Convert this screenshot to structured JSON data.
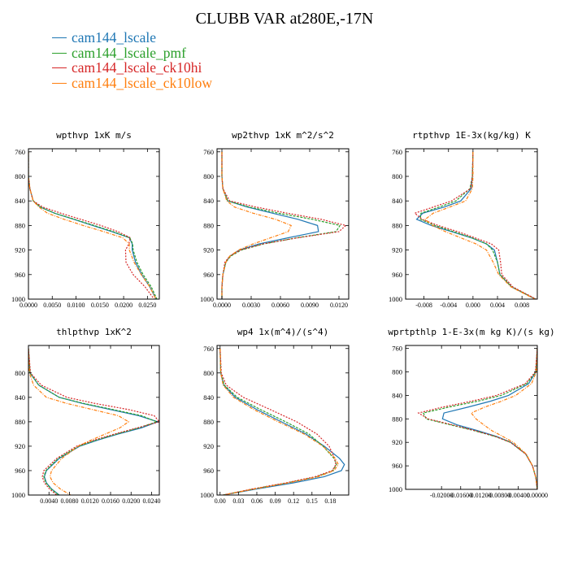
{
  "title": "CLUBB VAR at280E,-17N",
  "legend": [
    {
      "label": "cam144_lscale",
      "color": "#1f77b4"
    },
    {
      "label": "cam144_lscale_pmf",
      "color": "#2ca02c"
    },
    {
      "label": "cam144_lscale_ck10hi",
      "color": "#d62728"
    },
    {
      "label": "cam144_lscale_ck10low",
      "color": "#ff7f0e"
    }
  ],
  "chart_data": [
    {
      "type": "line",
      "title": "wpthvp   1xK m/s",
      "y": [
        760,
        800,
        820,
        840,
        850,
        860,
        870,
        880,
        890,
        900,
        910,
        920,
        940,
        960,
        980,
        1000
      ],
      "ylim": [
        1000,
        755
      ],
      "yticks": [
        760,
        800,
        840,
        880,
        920,
        960,
        1000
      ],
      "xlim": [
        0.0,
        0.0275
      ],
      "xticks": [
        0.0,
        0.005,
        0.01,
        0.015,
        0.02,
        0.025
      ],
      "xticklabels": [
        "0.0000",
        "0.0050",
        "0.0100",
        "0.0150",
        "0.0200",
        "0.0250"
      ],
      "series": [
        {
          "name": "cam144_lscale",
          "x": [
            0,
            0,
            0.0003,
            0.001,
            0.0025,
            0.0055,
            0.0095,
            0.0135,
            0.0175,
            0.0212,
            0.0218,
            0.0218,
            0.0225,
            0.0238,
            0.0255,
            0.0268
          ]
        },
        {
          "name": "cam144_lscale_pmf",
          "x": [
            0,
            0,
            0.0003,
            0.001,
            0.0025,
            0.0055,
            0.0097,
            0.0138,
            0.0178,
            0.0213,
            0.0219,
            0.022,
            0.0228,
            0.0241,
            0.0258,
            0.027
          ]
        },
        {
          "name": "cam144_lscale_ck10hi",
          "x": [
            0,
            0,
            0.0003,
            0.001,
            0.003,
            0.0068,
            0.011,
            0.0152,
            0.0188,
            0.0214,
            0.0211,
            0.0204,
            0.0205,
            0.022,
            0.0245,
            0.0264
          ]
        },
        {
          "name": "cam144_lscale_ck10low",
          "x": [
            0,
            0,
            0.0003,
            0.001,
            0.0022,
            0.004,
            0.0075,
            0.0115,
            0.0158,
            0.0198,
            0.0212,
            0.0212,
            0.0222,
            0.0237,
            0.0255,
            0.0268
          ]
        }
      ]
    },
    {
      "type": "line",
      "title": "wp2thvp   1xK m^2/s^2",
      "y": [
        760,
        800,
        820,
        840,
        850,
        860,
        870,
        880,
        890,
        900,
        910,
        920,
        930,
        940,
        960,
        980,
        1000
      ],
      "ylim": [
        1000,
        755
      ],
      "yticks": [
        760,
        800,
        840,
        880,
        920,
        960,
        1000
      ],
      "xlim": [
        -0.0005,
        0.013
      ],
      "xticks": [
        0.0,
        0.003,
        0.006,
        0.009,
        0.012
      ],
      "xticklabels": [
        "0.0000",
        "0.0030",
        "0.0060",
        "0.0090",
        "0.0120"
      ],
      "series": [
        {
          "name": "cam144_lscale",
          "x": [
            0,
            0,
            0.0001,
            0.0006,
            0.0026,
            0.0052,
            0.0078,
            0.0098,
            0.0099,
            0.0068,
            0.0038,
            0.0018,
            0.0008,
            0.0004,
            0.0001,
            0,
            0
          ]
        },
        {
          "name": "cam144_lscale_pmf",
          "x": [
            0,
            0,
            0.0001,
            0.0006,
            0.0028,
            0.0058,
            0.0093,
            0.0121,
            0.0117,
            0.0077,
            0.0043,
            0.002,
            0.0009,
            0.0004,
            0.0001,
            0,
            0
          ]
        },
        {
          "name": "cam144_lscale_ck10hi",
          "x": [
            0,
            0,
            0.0001,
            0.0008,
            0.0035,
            0.0067,
            0.0102,
            0.0127,
            0.012,
            0.0078,
            0.0042,
            0.0019,
            0.0008,
            0.0003,
            0.0001,
            0,
            0
          ]
        },
        {
          "name": "cam144_lscale_ck10low",
          "x": [
            0,
            0,
            0.0001,
            0.0005,
            0.0013,
            0.0032,
            0.0055,
            0.0071,
            0.0068,
            0.005,
            0.0032,
            0.0017,
            0.0008,
            0.0004,
            0.0001,
            0,
            0
          ]
        }
      ]
    },
    {
      "type": "line",
      "title": "rtpthvp   1E-3x(kg/kg) K",
      "y": [
        760,
        800,
        820,
        840,
        850,
        860,
        870,
        880,
        890,
        900,
        910,
        920,
        940,
        960,
        980,
        1000
      ],
      "ylim": [
        1000,
        755
      ],
      "yticks": [
        760,
        800,
        840,
        880,
        920,
        960,
        1000
      ],
      "xlim": [
        -0.011,
        0.0105
      ],
      "xticks": [
        -0.008,
        -0.004,
        0.0,
        0.004,
        0.008
      ],
      "xticklabels": [
        "-0.008",
        "-0.004",
        "0.000",
        "0.004",
        "0.008"
      ],
      "series": [
        {
          "name": "cam144_lscale",
          "x": [
            0,
            -0.0001,
            -0.0003,
            -0.002,
            -0.0047,
            -0.0082,
            -0.0092,
            -0.0068,
            -0.0035,
            -0.0003,
            0.0022,
            0.0035,
            0.004,
            0.0044,
            0.0063,
            0.0102
          ]
        },
        {
          "name": "cam144_lscale_pmf",
          "x": [
            0,
            -0.0001,
            -0.0005,
            -0.0028,
            -0.0055,
            -0.0085,
            -0.0086,
            -0.0062,
            -0.0032,
            -0.0002,
            0.0022,
            0.0032,
            0.004,
            0.0044,
            0.0063,
            0.0102
          ]
        },
        {
          "name": "cam144_lscale_ck10hi",
          "x": [
            0,
            -0.0001,
            -0.0004,
            -0.0035,
            -0.0065,
            -0.0095,
            -0.0083,
            -0.0057,
            -0.0025,
            0.0003,
            0.003,
            0.0042,
            0.0045,
            0.0047,
            0.0065,
            0.0103
          ]
        },
        {
          "name": "cam144_lscale_ck10low",
          "x": [
            0,
            0,
            -0.0001,
            -0.0012,
            -0.0038,
            -0.0065,
            -0.0078,
            -0.0066,
            -0.0045,
            -0.002,
            0.0005,
            0.0022,
            0.0033,
            0.0042,
            0.0062,
            0.0101
          ]
        }
      ]
    },
    {
      "type": "line",
      "title": "thlpthvp   1xK^2",
      "y": [
        760,
        800,
        820,
        840,
        850,
        860,
        870,
        880,
        890,
        900,
        910,
        920,
        940,
        960,
        970,
        980,
        990,
        1000
      ],
      "ylim": [
        1000,
        755
      ],
      "yticks": [
        800,
        840,
        880,
        920,
        960,
        1000
      ],
      "xlim": [
        0.0,
        0.0255
      ],
      "xticks": [
        0.004,
        0.008,
        0.012,
        0.016,
        0.02,
        0.024
      ],
      "xticklabels": [
        "0.0040",
        "0.0080",
        "0.0120",
        "0.0160",
        "0.0200",
        "0.0240"
      ],
      "series": [
        {
          "name": "cam144_lscale",
          "x": [
            0,
            0.0003,
            0.002,
            0.006,
            0.0105,
            0.016,
            0.0215,
            0.0252,
            0.022,
            0.0175,
            0.0135,
            0.01,
            0.006,
            0.0035,
            0.0031,
            0.0035,
            0.0045,
            0.006
          ]
        },
        {
          "name": "cam144_lscale_pmf",
          "x": [
            0,
            0.0003,
            0.002,
            0.006,
            0.0108,
            0.0165,
            0.022,
            0.025,
            0.0215,
            0.0172,
            0.0132,
            0.0098,
            0.0058,
            0.0034,
            0.003,
            0.0034,
            0.0044,
            0.0059
          ]
        },
        {
          "name": "cam144_lscale_ck10hi",
          "x": [
            0,
            0.0004,
            0.0025,
            0.0075,
            0.013,
            0.0195,
            0.0245,
            0.0255,
            0.0212,
            0.0168,
            0.0128,
            0.0094,
            0.0055,
            0.003,
            0.0027,
            0.0031,
            0.0041,
            0.0055
          ]
        },
        {
          "name": "cam144_lscale_ck10low",
          "x": [
            0,
            0.0002,
            0.001,
            0.0035,
            0.0075,
            0.0125,
            0.0175,
            0.0195,
            0.0178,
            0.015,
            0.0122,
            0.0097,
            0.0065,
            0.0045,
            0.0042,
            0.0048,
            0.0062,
            0.0082
          ]
        }
      ]
    },
    {
      "type": "line",
      "title": "wp4   1x(m^4)/(s^4)",
      "y": [
        760,
        800,
        820,
        840,
        860,
        880,
        900,
        920,
        940,
        950,
        960,
        970,
        980,
        990,
        1000
      ],
      "ylim": [
        1000,
        755
      ],
      "yticks": [
        760,
        800,
        840,
        880,
        920,
        960,
        1000
      ],
      "xlim": [
        -0.005,
        0.21
      ],
      "xticks": [
        0.0,
        0.03,
        0.06,
        0.09,
        0.12,
        0.15,
        0.18
      ],
      "xticklabels": [
        "0.00",
        "0.03",
        "0.06",
        "0.09",
        "0.12",
        "0.15",
        "0.18"
      ],
      "series": [
        {
          "name": "cam144_lscale",
          "x": [
            0,
            0.001,
            0.006,
            0.025,
            0.06,
            0.1,
            0.14,
            0.17,
            0.195,
            0.203,
            0.198,
            0.17,
            0.12,
            0.06,
            0.005
          ]
        },
        {
          "name": "cam144_lscale_pmf",
          "x": [
            0,
            0.001,
            0.007,
            0.028,
            0.066,
            0.107,
            0.145,
            0.168,
            0.186,
            0.19,
            0.184,
            0.158,
            0.11,
            0.055,
            0.005
          ]
        },
        {
          "name": "cam144_lscale_ck10hi",
          "x": [
            0,
            0.002,
            0.01,
            0.038,
            0.082,
            0.125,
            0.158,
            0.178,
            0.187,
            0.189,
            0.183,
            0.155,
            0.108,
            0.053,
            0.005
          ]
        },
        {
          "name": "cam144_lscale_ck10low",
          "x": [
            0,
            0.001,
            0.005,
            0.022,
            0.055,
            0.095,
            0.137,
            0.168,
            0.188,
            0.193,
            0.186,
            0.16,
            0.112,
            0.056,
            0.005
          ]
        }
      ]
    },
    {
      "type": "line",
      "title": "wprtpthlp   1-E-3x(m kg K)/(s kg)",
      "y": [
        760,
        800,
        820,
        840,
        850,
        860,
        870,
        880,
        890,
        900,
        910,
        920,
        940,
        960,
        980,
        1000
      ],
      "ylim": [
        1000,
        755
      ],
      "yticks": [
        760,
        800,
        840,
        880,
        920,
        960,
        1000
      ],
      "xlim": [
        -0.0275,
        0.0
      ],
      "xticks": [
        -0.02,
        -0.016,
        -0.012,
        -0.008,
        -0.004,
        0.0
      ],
      "xticklabels": [
        "-0.02000",
        "-0.01600",
        "-0.01200",
        "-0.00800",
        "-0.00400",
        "0.00000"
      ],
      "series": [
        {
          "name": "cam144_lscale",
          "x": [
            0,
            -0.0003,
            -0.0018,
            -0.006,
            -0.0098,
            -0.0145,
            -0.0195,
            -0.0198,
            -0.0168,
            -0.0125,
            -0.0085,
            -0.0055,
            -0.0024,
            -0.001,
            -0.0003,
            0
          ]
        },
        {
          "name": "cam144_lscale_pmf",
          "x": [
            0,
            -0.0003,
            -0.0022,
            -0.0075,
            -0.0125,
            -0.0185,
            -0.0238,
            -0.0232,
            -0.0182,
            -0.0132,
            -0.0088,
            -0.0056,
            -0.0024,
            -0.001,
            -0.0003,
            0
          ]
        },
        {
          "name": "cam144_lscale_ck10hi",
          "x": [
            0,
            -0.0004,
            -0.0025,
            -0.0085,
            -0.0138,
            -0.0198,
            -0.0248,
            -0.0228,
            -0.0178,
            -0.013,
            -0.0087,
            -0.0056,
            -0.0024,
            -0.001,
            -0.0003,
            0
          ]
        },
        {
          "name": "cam144_lscale_ck10low",
          "x": [
            0,
            -0.0002,
            -0.0012,
            -0.0045,
            -0.0075,
            -0.011,
            -0.0138,
            -0.0128,
            -0.0112,
            -0.0095,
            -0.0072,
            -0.005,
            -0.0023,
            -0.001,
            -0.0003,
            0
          ]
        }
      ]
    }
  ]
}
